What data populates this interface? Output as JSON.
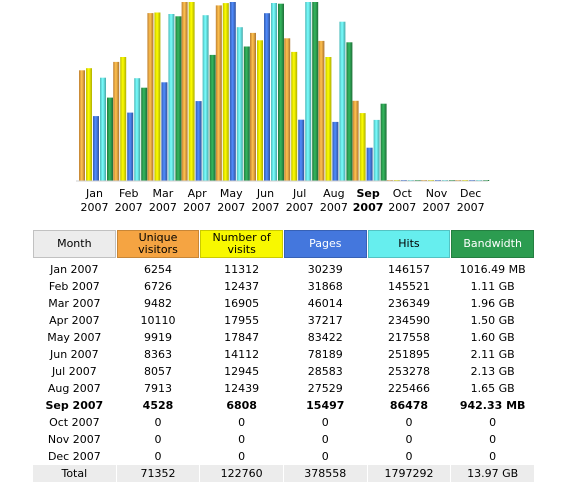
{
  "colors": {
    "visitors": "#f5a442",
    "visits": "#f8f800",
    "pages": "#4477dd",
    "hits": "#66eeee",
    "bandwidth": "#2c9c50",
    "month_header": "#ececec",
    "total_row": "#ececec"
  },
  "table": {
    "headers": {
      "month": "Month",
      "visitors": "Unique visitors",
      "visits": "Number of visits",
      "pages": "Pages",
      "hits": "Hits",
      "bandwidth": "Bandwidth"
    },
    "rows": [
      {
        "month": "Jan 2007",
        "visitors": "6254",
        "visits": "11312",
        "pages": "30239",
        "hits": "146157",
        "bandwidth": "1016.49 MB"
      },
      {
        "month": "Feb 2007",
        "visitors": "6726",
        "visits": "12437",
        "pages": "31868",
        "hits": "145521",
        "bandwidth": "1.11 GB"
      },
      {
        "month": "Mar 2007",
        "visitors": "9482",
        "visits": "16905",
        "pages": "46014",
        "hits": "236349",
        "bandwidth": "1.96 GB"
      },
      {
        "month": "Apr 2007",
        "visitors": "10110",
        "visits": "17955",
        "pages": "37217",
        "hits": "234590",
        "bandwidth": "1.50 GB"
      },
      {
        "month": "May 2007",
        "visitors": "9919",
        "visits": "17847",
        "pages": "83422",
        "hits": "217558",
        "bandwidth": "1.60 GB"
      },
      {
        "month": "Jun 2007",
        "visitors": "8363",
        "visits": "14112",
        "pages": "78189",
        "hits": "251895",
        "bandwidth": "2.11 GB"
      },
      {
        "month": "Jul 2007",
        "visitors": "8057",
        "visits": "12945",
        "pages": "28583",
        "hits": "253278",
        "bandwidth": "2.13 GB"
      },
      {
        "month": "Aug 2007",
        "visitors": "7913",
        "visits": "12439",
        "pages": "27529",
        "hits": "225466",
        "bandwidth": "1.65 GB"
      },
      {
        "month": "Sep 2007",
        "visitors": "4528",
        "visits": "6808",
        "pages": "15497",
        "hits": "86478",
        "bandwidth": "942.33 MB",
        "current": true
      },
      {
        "month": "Oct 2007",
        "visitors": "0",
        "visits": "0",
        "pages": "0",
        "hits": "0",
        "bandwidth": "0"
      },
      {
        "month": "Nov 2007",
        "visitors": "0",
        "visits": "0",
        "pages": "0",
        "hits": "0",
        "bandwidth": "0"
      },
      {
        "month": "Dec 2007",
        "visitors": "0",
        "visits": "0",
        "pages": "0",
        "hits": "0",
        "bandwidth": "0"
      }
    ],
    "total": {
      "month": "Total",
      "visitors": "71352",
      "visits": "122760",
      "pages": "378558",
      "hits": "1797292",
      "bandwidth": "13.97 GB"
    }
  },
  "chart_data": {
    "type": "bar",
    "categories": [
      "Jan",
      "Feb",
      "Mar",
      "Apr",
      "May",
      "Jun",
      "Jul",
      "Aug",
      "Sep",
      "Oct",
      "Nov",
      "Dec"
    ],
    "year_labels": [
      "2007",
      "2007",
      "2007",
      "2007",
      "2007",
      "2007",
      "2007",
      "2007",
      "2007",
      "2007",
      "2007",
      "2007"
    ],
    "current_index": 8,
    "series": [
      {
        "key": "visitors",
        "values": [
          6254,
          6726,
          9482,
          10110,
          9919,
          8363,
          8057,
          7913,
          4528,
          0,
          0,
          0
        ]
      },
      {
        "key": "visits",
        "values": [
          11312,
          12437,
          16905,
          17955,
          17847,
          14112,
          12945,
          12439,
          6808,
          0,
          0,
          0
        ]
      },
      {
        "key": "pages",
        "values": [
          30239,
          31868,
          46014,
          37217,
          83422,
          78189,
          28583,
          27529,
          15497,
          0,
          0,
          0
        ]
      },
      {
        "key": "hits",
        "values": [
          146157,
          145521,
          236349,
          234590,
          217558,
          251895,
          253278,
          225466,
          86478,
          0,
          0,
          0
        ]
      },
      {
        "key": "bandwidth",
        "values": [
          1016.49,
          1136.64,
          2007.04,
          1536.0,
          1638.4,
          2160.64,
          2181.12,
          1689.6,
          942.33,
          0,
          0,
          0
        ],
        "unit": "MB"
      }
    ],
    "grid": false,
    "legend": "none"
  }
}
